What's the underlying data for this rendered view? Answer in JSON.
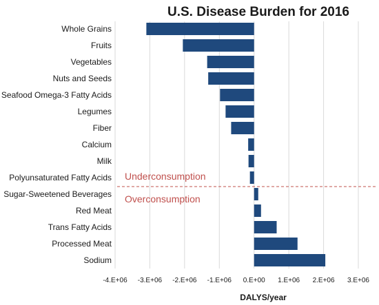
{
  "chart_data": {
    "type": "bar",
    "orientation": "horizontal",
    "title": "U.S. Disease Burden for 2016",
    "xlabel": "DALYS/year",
    "ylabel": "",
    "xlim": [
      -4000000,
      3000000
    ],
    "x_ticks": [
      -4000000,
      -3000000,
      -2000000,
      -1000000,
      0,
      1000000,
      2000000,
      3000000
    ],
    "x_tick_labels": [
      "-4.E+06",
      "-3.E+06",
      "-2.E+06",
      "-1.E+06",
      "0.E+00",
      "1.E+06",
      "2.E+06",
      "3.E+06"
    ],
    "grid": "vertical",
    "categories": [
      "Whole Grains",
      "Fruits",
      "Vegetables",
      "Nuts and Seeds",
      "Seafood Omega-3 Fatty Acids",
      "Legumes",
      "Fiber",
      "Calcium",
      "Milk",
      "Polyunsaturated Fatty Acids",
      "Sugar-Sweetened Beverages",
      "Red Meat",
      "Trans Fatty Acids",
      "Processed Meat",
      "Sodium"
    ],
    "values": [
      -3100000,
      -2050000,
      -1350000,
      -1320000,
      -980000,
      -820000,
      -660000,
      -170000,
      -160000,
      -120000,
      120000,
      200000,
      650000,
      1250000,
      2050000
    ],
    "bar_color": "#1f497d",
    "annotations": [
      {
        "text": "Underconsumption",
        "color": "#c0504d"
      },
      {
        "text": "Overconsumption",
        "color": "#c0504d"
      }
    ],
    "divider": {
      "between": [
        "Polyunsaturated Fatty Acids",
        "Sugar-Sweetened Beverages"
      ],
      "style": "dashed",
      "color": "#c0504d"
    }
  }
}
